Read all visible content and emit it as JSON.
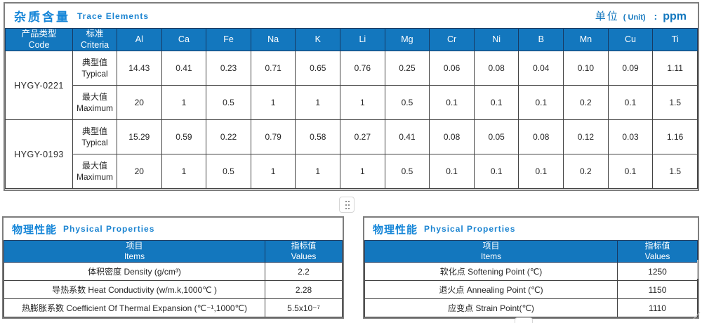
{
  "trace_section": {
    "title_zh": "杂质含量",
    "title_en": "Trace Elements",
    "unit_label_zh": "单位",
    "unit_paren": "( Unit)",
    "unit_colon": ":",
    "unit_value": "ppm",
    "columns": {
      "code_zh": "产品类型",
      "code_en": "Code",
      "criteria_zh": "标准",
      "criteria_en": "Criteria",
      "elements": [
        "Al",
        "Ca",
        "Fe",
        "Na",
        "K",
        "Li",
        "Mg",
        "Cr",
        "Ni",
        "B",
        "Mn",
        "Cu",
        "Ti"
      ]
    },
    "rows": [
      {
        "code": "HYGY-0221",
        "criteria_zh": "典型值",
        "criteria_en": "Typical",
        "values": [
          "14.43",
          "0.41",
          "0.23",
          "0.71",
          "0.65",
          "0.76",
          "0.25",
          "0.06",
          "0.08",
          "0.04",
          "0.10",
          "0.09",
          "1.11"
        ]
      },
      {
        "criteria_zh": "最大值",
        "criteria_en": "Maximum",
        "values": [
          "20",
          "1",
          "0.5",
          "1",
          "1",
          "1",
          "0.5",
          "0.1",
          "0.1",
          "0.1",
          "0.2",
          "0.1",
          "1.5"
        ]
      },
      {
        "code": "HYGY-0193",
        "criteria_zh": "典型值",
        "criteria_en": "Typical",
        "values": [
          "15.29",
          "0.59",
          "0.22",
          "0.79",
          "0.58",
          "0.27",
          "0.41",
          "0.08",
          "0.05",
          "0.08",
          "0.12",
          "0.03",
          "1.16"
        ]
      },
      {
        "criteria_zh": "最大值",
        "criteria_en": "Maximum",
        "values": [
          "20",
          "1",
          "0.5",
          "1",
          "1",
          "1",
          "0.5",
          "0.1",
          "0.1",
          "0.1",
          "0.2",
          "0.1",
          "1.5"
        ]
      }
    ]
  },
  "physical_left": {
    "title_zh": "物理性能",
    "title_en": "Physical Properties",
    "col_items_zh": "项目",
    "col_items_en": "Items",
    "col_values_zh": "指标值",
    "col_values_en": "Values",
    "rows": [
      {
        "item": "体积密度 Density (g/cm³)",
        "value": "2.2"
      },
      {
        "item": "导热系数 Heat Conductivity (w/m.k,1000℃ )",
        "value": "2.28"
      },
      {
        "item": "热膨胀系数 Coefficient Of Thermal Expansion (℃⁻¹,1000℃)",
        "value": "5.5x10⁻⁷"
      }
    ]
  },
  "physical_right": {
    "title_zh": "物理性能",
    "title_en": "Physical Properties",
    "col_items_zh": "项目",
    "col_items_en": "Items",
    "col_values_zh": "指标值",
    "col_values_en": "Values",
    "rows": [
      {
        "item": "软化点 Softening Point (℃)",
        "value": "1250"
      },
      {
        "item": "退火点 Annealing Point (℃)",
        "value": "1150"
      },
      {
        "item": "应变点 Strain Point(℃)",
        "value": "1110"
      }
    ]
  },
  "colors": {
    "header_blue": "#1377be",
    "title_blue": "#1686d8",
    "header_border_navy": "#173a63",
    "cell_border": "#424242",
    "frame_gray": "#7d7d7d"
  }
}
